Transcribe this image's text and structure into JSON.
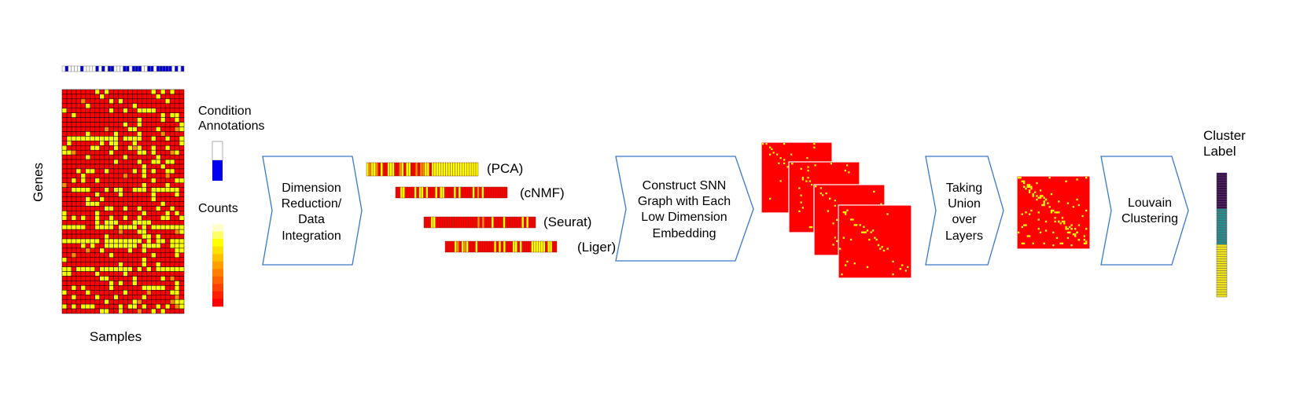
{
  "labels": {
    "genes": "Genes",
    "samples": "Samples",
    "condition_annotations_line1": "Condition",
    "condition_annotations_line2": "Annotations",
    "counts": "Counts",
    "cluster_label_line1": "Cluster",
    "cluster_label_line2": "Label"
  },
  "steps": [
    {
      "lines": [
        "Dimension",
        "Reduction/",
        "Data",
        "Integration"
      ]
    },
    {
      "lines": [
        "Construct SNN",
        "Graph with Each",
        "Low Dimension",
        "Embedding"
      ]
    },
    {
      "lines": [
        "Taking",
        "Union",
        "over",
        "Layers"
      ]
    },
    {
      "lines": [
        "Louvain",
        "Clustering"
      ]
    }
  ],
  "embeddings": [
    "(PCA)",
    "(cNMF)",
    "(Seurat)",
    "(Liger)"
  ],
  "colors": {
    "heat_red": "#ff0000",
    "heat_yellow": "#ffff00",
    "heat_orange": "#ff8c00",
    "condition_blue": "#0000cc",
    "arrow_outline": "#3a78c9",
    "cluster_purple": "#3b0f4f",
    "cluster_teal": "#2a8c8c",
    "cluster_yellow": "#f0e31c"
  }
}
